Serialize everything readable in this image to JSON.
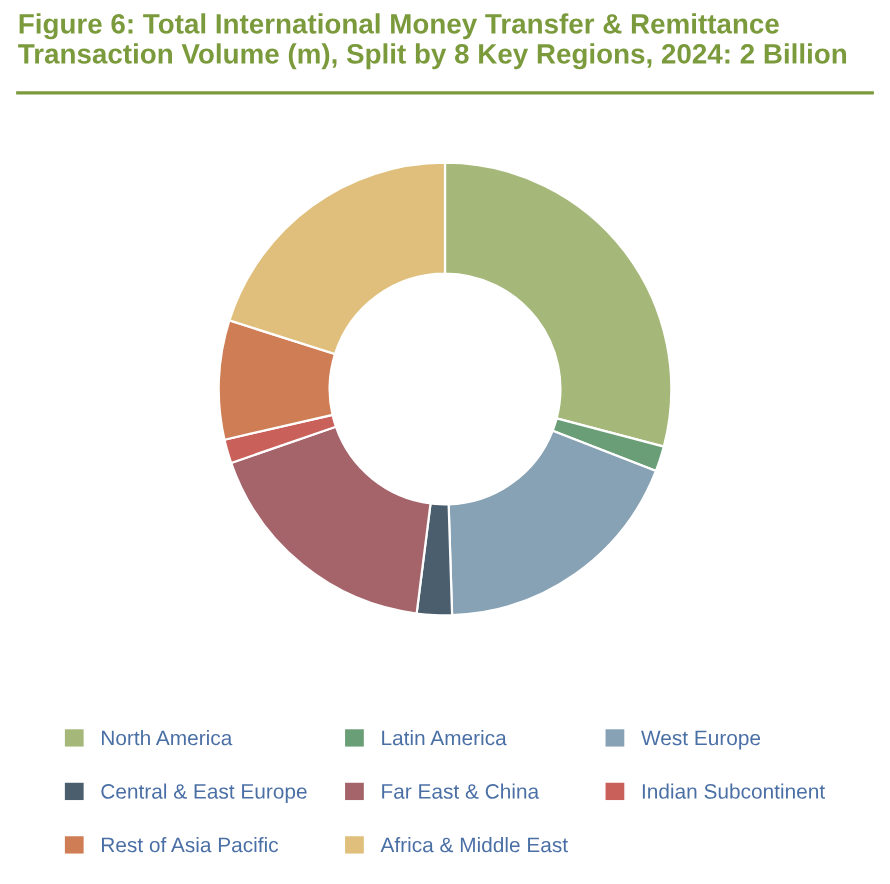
{
  "chart_data": {
    "type": "donut",
    "title": "Figure 6: Total International Money Transfer & Remittance Transaction Volume (m), Split by 8 Key Regions, 2024: 2 Billion",
    "categories": [
      "North America",
      "Latin America",
      "West Europe",
      "Central & East Europe",
      "Far East & China",
      "Indian Subcontinent",
      "Rest of Asia Pacific",
      "Africa & Middle East"
    ],
    "values": [
      29.1,
      1.8,
      18.6,
      2.5,
      17.7,
      1.7,
      8.5,
      20.1
    ],
    "colors": [
      "#a5b879",
      "#6a9e77",
      "#87a2b4",
      "#4a5e6e",
      "#a4646a",
      "#c9605a",
      "#cf7d55",
      "#dfbf7b"
    ],
    "legend": "bottom"
  }
}
